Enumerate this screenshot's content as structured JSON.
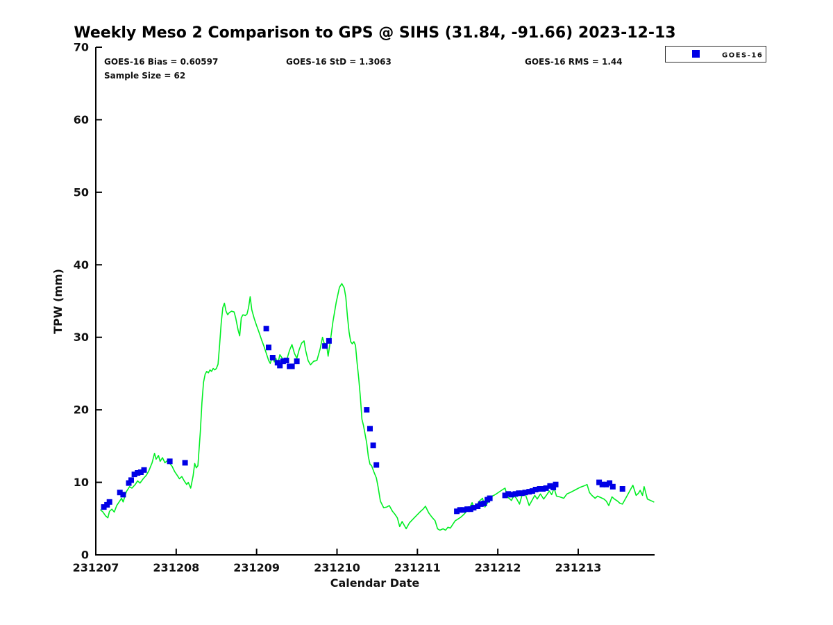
{
  "stats": {
    "bias": "GOES-16 Bias = 0.60597",
    "std": "GOES-16 StD = 1.3063",
    "rms": "GOES-16 RMS = 1.44",
    "sample_size": "Sample Size = 62"
  },
  "legend": {
    "label": "GOES-16",
    "marker": "square",
    "marker_color": "#0000E6"
  },
  "colors": {
    "gps_line": "#00EE22",
    "goes16_marker": "#0000E6",
    "axis": "#000000",
    "background": "#FFFFFF"
  },
  "chart_data": {
    "type": "line",
    "title": "Weekly Meso 2 Comparison to GPS @ SIHS (31.84, -91.66) 2023-12-13",
    "xlabel": "Calendar Date",
    "ylabel": "TPW (mm)",
    "grid": false,
    "legend_position": "top-right-outside",
    "annotations": [
      "GOES-16 Bias = 0.60597",
      "GOES-16 StD = 1.3063",
      "GOES-16 RMS = 1.44",
      "Sample Size = 62"
    ],
    "x_tick_labels": [
      "231207",
      "231208",
      "231209",
      "231210",
      "231211",
      "231212",
      "231213"
    ],
    "x_tick_day_offsets": [
      0,
      1,
      2,
      3,
      4,
      5,
      6
    ],
    "y_ticks": [
      0,
      10,
      20,
      30,
      40,
      50,
      60,
      70
    ],
    "ylim": [
      0,
      70
    ],
    "xlim_day_offsets": [
      0,
      6.95
    ],
    "series": [
      {
        "name": "GPS (green line)",
        "type": "line",
        "color": "#00EE22",
        "points": [
          [
            0.06,
            6.2
          ],
          [
            0.09,
            5.9
          ],
          [
            0.12,
            5.4
          ],
          [
            0.15,
            5.1
          ],
          [
            0.17,
            6.0
          ],
          [
            0.2,
            6.3
          ],
          [
            0.23,
            5.9
          ],
          [
            0.26,
            6.8
          ],
          [
            0.29,
            7.3
          ],
          [
            0.32,
            7.8
          ],
          [
            0.34,
            7.3
          ],
          [
            0.38,
            8.7
          ],
          [
            0.42,
            9.4
          ],
          [
            0.45,
            9.2
          ],
          [
            0.49,
            9.7
          ],
          [
            0.52,
            10.2
          ],
          [
            0.55,
            9.9
          ],
          [
            0.59,
            10.5
          ],
          [
            0.63,
            11.0
          ],
          [
            0.66,
            11.6
          ],
          [
            0.7,
            12.7
          ],
          [
            0.73,
            14.0
          ],
          [
            0.75,
            13.2
          ],
          [
            0.78,
            13.7
          ],
          [
            0.8,
            12.9
          ],
          [
            0.83,
            13.4
          ],
          [
            0.86,
            12.7
          ],
          [
            0.89,
            13.0
          ],
          [
            0.92,
            12.6
          ],
          [
            0.95,
            12.2
          ],
          [
            0.98,
            11.5
          ],
          [
            1.01,
            11.0
          ],
          [
            1.04,
            10.5
          ],
          [
            1.07,
            10.8
          ],
          [
            1.1,
            10.2
          ],
          [
            1.13,
            9.7
          ],
          [
            1.15,
            10.0
          ],
          [
            1.18,
            9.2
          ],
          [
            1.21,
            10.9
          ],
          [
            1.23,
            12.6
          ],
          [
            1.25,
            12.0
          ],
          [
            1.27,
            12.3
          ],
          [
            1.3,
            17.0
          ],
          [
            1.32,
            21.0
          ],
          [
            1.34,
            23.8
          ],
          [
            1.36,
            24.9
          ],
          [
            1.38,
            25.3
          ],
          [
            1.4,
            25.1
          ],
          [
            1.42,
            25.5
          ],
          [
            1.44,
            25.3
          ],
          [
            1.46,
            25.7
          ],
          [
            1.48,
            25.5
          ],
          [
            1.5,
            25.7
          ],
          [
            1.52,
            26.3
          ],
          [
            1.54,
            29.0
          ],
          [
            1.56,
            32.0
          ],
          [
            1.58,
            34.1
          ],
          [
            1.6,
            34.7
          ],
          [
            1.62,
            33.6
          ],
          [
            1.64,
            33.1
          ],
          [
            1.66,
            33.4
          ],
          [
            1.69,
            33.6
          ],
          [
            1.72,
            33.5
          ],
          [
            1.74,
            32.7
          ],
          [
            1.77,
            31.0
          ],
          [
            1.79,
            30.2
          ],
          [
            1.81,
            32.7
          ],
          [
            1.83,
            33.1
          ],
          [
            1.86,
            33.0
          ],
          [
            1.88,
            33.2
          ],
          [
            1.9,
            34.1
          ],
          [
            1.92,
            35.6
          ],
          [
            1.94,
            33.8
          ],
          [
            1.97,
            32.6
          ],
          [
            2.0,
            31.6
          ],
          [
            2.03,
            30.7
          ],
          [
            2.06,
            29.7
          ],
          [
            2.09,
            28.8
          ],
          [
            2.12,
            27.8
          ],
          [
            2.15,
            26.8
          ],
          [
            2.17,
            26.4
          ],
          [
            2.2,
            27.4
          ],
          [
            2.22,
            26.6
          ],
          [
            2.24,
            27.1
          ],
          [
            2.26,
            26.2
          ],
          [
            2.29,
            27.6
          ],
          [
            2.32,
            27.1
          ],
          [
            2.35,
            26.7
          ],
          [
            2.38,
            27.1
          ],
          [
            2.41,
            28.2
          ],
          [
            2.44,
            29.0
          ],
          [
            2.47,
            27.8
          ],
          [
            2.5,
            27.1
          ],
          [
            2.53,
            28.3
          ],
          [
            2.56,
            29.2
          ],
          [
            2.59,
            29.5
          ],
          [
            2.61,
            28.2
          ],
          [
            2.64,
            26.8
          ],
          [
            2.67,
            26.2
          ],
          [
            2.71,
            26.7
          ],
          [
            2.75,
            26.8
          ],
          [
            2.79,
            28.4
          ],
          [
            2.82,
            30.0
          ],
          [
            2.84,
            29.2
          ],
          [
            2.87,
            29.0
          ],
          [
            2.89,
            27.4
          ],
          [
            2.92,
            29.7
          ],
          [
            2.95,
            32.2
          ],
          [
            2.99,
            34.8
          ],
          [
            3.03,
            36.9
          ],
          [
            3.06,
            37.4
          ],
          [
            3.09,
            36.8
          ],
          [
            3.11,
            35.5
          ],
          [
            3.13,
            32.9
          ],
          [
            3.15,
            30.7
          ],
          [
            3.17,
            29.4
          ],
          [
            3.19,
            29.1
          ],
          [
            3.21,
            29.4
          ],
          [
            3.23,
            28.9
          ],
          [
            3.25,
            26.5
          ],
          [
            3.27,
            24.3
          ],
          [
            3.29,
            21.8
          ],
          [
            3.31,
            18.7
          ],
          [
            3.33,
            17.8
          ],
          [
            3.35,
            16.6
          ],
          [
            3.37,
            15.4
          ],
          [
            3.39,
            13.5
          ],
          [
            3.41,
            12.5
          ],
          [
            3.43,
            12.3
          ],
          [
            3.46,
            11.4
          ],
          [
            3.49,
            10.6
          ],
          [
            3.51,
            9.4
          ],
          [
            3.54,
            7.4
          ],
          [
            3.58,
            6.5
          ],
          [
            3.62,
            6.6
          ],
          [
            3.65,
            6.8
          ],
          [
            3.69,
            6.0
          ],
          [
            3.72,
            5.6
          ],
          [
            3.75,
            5.1
          ],
          [
            3.78,
            3.9
          ],
          [
            3.81,
            4.6
          ],
          [
            3.86,
            3.6
          ],
          [
            3.9,
            4.4
          ],
          [
            3.96,
            5.1
          ],
          [
            4.03,
            5.9
          ],
          [
            4.07,
            6.3
          ],
          [
            4.1,
            6.7
          ],
          [
            4.14,
            5.8
          ],
          [
            4.18,
            5.2
          ],
          [
            4.22,
            4.7
          ],
          [
            4.25,
            3.6
          ],
          [
            4.28,
            3.4
          ],
          [
            4.32,
            3.6
          ],
          [
            4.35,
            3.4
          ],
          [
            4.38,
            3.8
          ],
          [
            4.41,
            3.7
          ],
          [
            4.44,
            4.2
          ],
          [
            4.47,
            4.7
          ],
          [
            4.5,
            4.9
          ],
          [
            4.54,
            5.2
          ],
          [
            4.58,
            5.6
          ],
          [
            4.62,
            6.1
          ],
          [
            4.65,
            6.5
          ],
          [
            4.68,
            7.2
          ],
          [
            4.71,
            6.3
          ],
          [
            4.74,
            6.9
          ],
          [
            4.77,
            7.4
          ],
          [
            4.81,
            7.8
          ],
          [
            4.84,
            6.6
          ],
          [
            4.88,
            7.3
          ],
          [
            4.91,
            8.0
          ],
          [
            4.95,
            8.2
          ],
          [
            4.98,
            8.4
          ],
          [
            5.02,
            8.7
          ],
          [
            5.06,
            9.0
          ],
          [
            5.09,
            9.2
          ],
          [
            5.12,
            8.0
          ],
          [
            5.15,
            7.7
          ],
          [
            5.17,
            7.5
          ],
          [
            5.2,
            8.2
          ],
          [
            5.23,
            7.8
          ],
          [
            5.27,
            7.0
          ],
          [
            5.3,
            8.2
          ],
          [
            5.33,
            8.7
          ],
          [
            5.36,
            7.8
          ],
          [
            5.39,
            6.8
          ],
          [
            5.43,
            7.6
          ],
          [
            5.46,
            8.2
          ],
          [
            5.49,
            7.7
          ],
          [
            5.53,
            8.4
          ],
          [
            5.57,
            7.7
          ],
          [
            5.61,
            8.3
          ],
          [
            5.64,
            8.8
          ],
          [
            5.67,
            8.3
          ],
          [
            5.7,
            9.2
          ],
          [
            5.73,
            8.1
          ],
          [
            5.77,
            8.0
          ],
          [
            5.82,
            7.8
          ],
          [
            5.86,
            8.4
          ],
          [
            5.92,
            8.7
          ],
          [
            5.97,
            9.0
          ],
          [
            6.02,
            9.3
          ],
          [
            6.07,
            9.5
          ],
          [
            6.11,
            9.7
          ],
          [
            6.14,
            8.6
          ],
          [
            6.17,
            8.2
          ],
          [
            6.21,
            7.8
          ],
          [
            6.24,
            8.1
          ],
          [
            6.28,
            7.9
          ],
          [
            6.32,
            7.7
          ],
          [
            6.35,
            7.4
          ],
          [
            6.38,
            6.8
          ],
          [
            6.42,
            8.0
          ],
          [
            6.45,
            7.7
          ],
          [
            6.49,
            7.4
          ],
          [
            6.52,
            7.1
          ],
          [
            6.55,
            7.0
          ],
          [
            6.6,
            8.0
          ],
          [
            6.64,
            8.8
          ],
          [
            6.68,
            9.6
          ],
          [
            6.72,
            8.2
          ],
          [
            6.75,
            8.5
          ],
          [
            6.77,
            8.9
          ],
          [
            6.8,
            8.2
          ],
          [
            6.82,
            9.4
          ],
          [
            6.86,
            7.7
          ],
          [
            6.9,
            7.5
          ],
          [
            6.94,
            7.3
          ]
        ]
      },
      {
        "name": "GOES-16",
        "type": "scatter",
        "marker": "square",
        "color": "#0000E6",
        "points": [
          [
            0.1,
            6.6
          ],
          [
            0.14,
            6.9
          ],
          [
            0.17,
            7.3
          ],
          [
            0.3,
            8.6
          ],
          [
            0.34,
            8.3
          ],
          [
            0.41,
            9.9
          ],
          [
            0.44,
            10.3
          ],
          [
            0.48,
            11.1
          ],
          [
            0.52,
            11.3
          ],
          [
            0.56,
            11.4
          ],
          [
            0.6,
            11.7
          ],
          [
            0.92,
            12.9
          ],
          [
            1.11,
            12.7
          ],
          [
            2.12,
            31.2
          ],
          [
            2.15,
            28.6
          ],
          [
            2.2,
            27.2
          ],
          [
            2.26,
            26.5
          ],
          [
            2.29,
            26.1
          ],
          [
            2.33,
            26.7
          ],
          [
            2.37,
            26.8
          ],
          [
            2.41,
            26.0
          ],
          [
            2.44,
            26.0
          ],
          [
            2.5,
            26.7
          ],
          [
            2.85,
            28.8
          ],
          [
            2.9,
            29.5
          ],
          [
            3.37,
            20.0
          ],
          [
            3.41,
            17.4
          ],
          [
            3.45,
            15.1
          ],
          [
            3.49,
            12.4
          ],
          [
            4.49,
            6.0
          ],
          [
            4.53,
            6.2
          ],
          [
            4.57,
            6.2
          ],
          [
            4.62,
            6.3
          ],
          [
            4.66,
            6.3
          ],
          [
            4.7,
            6.5
          ],
          [
            4.75,
            6.7
          ],
          [
            4.79,
            7.0
          ],
          [
            4.83,
            7.1
          ],
          [
            4.87,
            7.6
          ],
          [
            4.9,
            7.8
          ],
          [
            5.09,
            8.2
          ],
          [
            5.13,
            8.4
          ],
          [
            5.17,
            8.3
          ],
          [
            5.22,
            8.4
          ],
          [
            5.26,
            8.5
          ],
          [
            5.3,
            8.5
          ],
          [
            5.34,
            8.6
          ],
          [
            5.39,
            8.7
          ],
          [
            5.43,
            8.8
          ],
          [
            5.47,
            9.0
          ],
          [
            5.52,
            9.1
          ],
          [
            5.56,
            9.1
          ],
          [
            5.6,
            9.2
          ],
          [
            5.65,
            9.5
          ],
          [
            5.69,
            9.3
          ],
          [
            5.72,
            9.7
          ],
          [
            6.26,
            10.0
          ],
          [
            6.3,
            9.7
          ],
          [
            6.35,
            9.7
          ],
          [
            6.39,
            9.9
          ],
          [
            6.43,
            9.4
          ],
          [
            6.55,
            9.1
          ]
        ]
      }
    ]
  }
}
